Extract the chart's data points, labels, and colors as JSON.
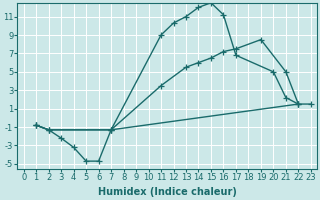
{
  "bg_color": "#cce8e8",
  "grid_color": "#ffffff",
  "line_color": "#1a6b6b",
  "marker": "+",
  "marker_size": 4,
  "line_width": 1.0,
  "xlabel": "Humidex (Indice chaleur)",
  "xlabel_fontsize": 7,
  "tick_fontsize": 6,
  "xlim": [
    -0.5,
    23.5
  ],
  "ylim": [
    -5.5,
    12.5
  ],
  "yticks": [
    -5,
    -3,
    -1,
    1,
    3,
    5,
    7,
    9,
    11
  ],
  "xticks": [
    0,
    1,
    2,
    3,
    4,
    5,
    6,
    7,
    8,
    9,
    10,
    11,
    12,
    13,
    14,
    15,
    16,
    17,
    18,
    19,
    20,
    21,
    22,
    23
  ],
  "curves": [
    {
      "x": [
        1,
        2,
        3,
        4,
        5,
        6,
        7,
        11,
        12,
        13,
        14,
        15,
        16,
        17,
        20,
        21,
        22
      ],
      "y": [
        -0.8,
        -1.3,
        -2.2,
        -3.2,
        -4.7,
        -4.7,
        -1.3,
        9.0,
        10.3,
        11.0,
        12.0,
        12.5,
        11.2,
        6.8,
        5.0,
        2.2,
        1.5
      ]
    },
    {
      "x": [
        1,
        2,
        7,
        11,
        13,
        14,
        15,
        16,
        17,
        19,
        21,
        22
      ],
      "y": [
        -0.8,
        -1.3,
        -1.3,
        3.5,
        5.5,
        6.0,
        6.5,
        7.2,
        7.5,
        8.5,
        5.0,
        1.5
      ]
    },
    {
      "x": [
        1,
        2,
        7,
        22,
        23
      ],
      "y": [
        -0.8,
        -1.3,
        -1.3,
        1.5,
        1.5
      ]
    }
  ]
}
